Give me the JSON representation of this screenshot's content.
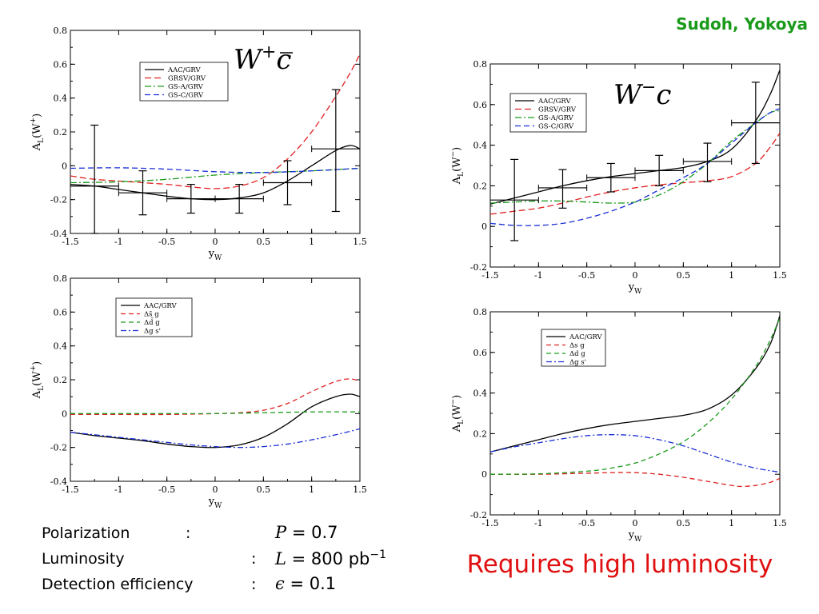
{
  "authors": "Sudoh, Yokoya",
  "conclusion": "Requires high luminosity",
  "params": [
    {
      "name": "Polarization",
      "colon": ":",
      "sym": "P",
      "rhs": "0.7",
      "unit": ""
    },
    {
      "name": "Luminosity",
      "colon": ":",
      "sym": "L",
      "rhs": "800",
      "unit": "pb",
      "sup": "−1"
    },
    {
      "name": "Detection efficiency",
      "colon": ":",
      "sym": "ϵ",
      "rhs": "0.1",
      "unit": ""
    }
  ],
  "colors": {
    "black": "#000000",
    "red": "#e02020",
    "green": "#1a9a1a",
    "blue": "#1a2fd6",
    "authors": "#1a9a1a",
    "conclusion": "#e01010"
  },
  "chart_data": [
    {
      "type": "line",
      "panel": "top-left",
      "title": "W+c̄",
      "ylabel": "A_L(W^+)",
      "xlabel": "y_W",
      "xlim": [
        -1.5,
        1.5
      ],
      "ylim": [
        -0.4,
        0.8
      ],
      "xticks": [
        "-1.5",
        "-1",
        "-0.5",
        "0",
        "0.5",
        "1",
        "1.5"
      ],
      "yticks": [
        "-0.4",
        "-0.2",
        "0",
        "0.2",
        "0.4",
        "0.6",
        "0.8"
      ],
      "legend_position": "upper-left",
      "series": [
        {
          "name": "AAC/GRV",
          "color": "#000000",
          "dash": "solid",
          "x": [
            -1.5,
            -1.25,
            -1,
            -0.75,
            -0.5,
            -0.25,
            0,
            0.25,
            0.5,
            0.75,
            1,
            1.25,
            1.4,
            1.5
          ],
          "y": [
            -0.11,
            -0.12,
            -0.14,
            -0.16,
            -0.18,
            -0.195,
            -0.2,
            -0.19,
            -0.16,
            -0.09,
            0.0,
            0.09,
            0.12,
            0.1
          ]
        },
        {
          "name": "GRSV/GRV",
          "color": "#e02020",
          "dash": "8,4",
          "x": [
            -1.5,
            -1.25,
            -1,
            -0.75,
            -0.5,
            -0.25,
            0,
            0.25,
            0.5,
            0.75,
            1,
            1.25,
            1.4,
            1.5
          ],
          "y": [
            -0.06,
            -0.08,
            -0.09,
            -0.1,
            -0.11,
            -0.125,
            -0.135,
            -0.12,
            -0.07,
            0.04,
            0.2,
            0.41,
            0.55,
            0.66
          ]
        },
        {
          "name": "GS-A/GRV",
          "color": "#1a9a1a",
          "dash": "8,3,2,3",
          "x": [
            -1.5,
            -1,
            -0.5,
            0,
            0.5,
            1,
            1.5
          ],
          "y": [
            -0.1,
            -0.095,
            -0.08,
            -0.055,
            -0.04,
            -0.03,
            -0.015
          ]
        },
        {
          "name": "GS-C/GRV",
          "color": "#1a2fd6",
          "dash": "7,4",
          "x": [
            -1.5,
            -1,
            -0.5,
            0,
            0.5,
            1,
            1.5
          ],
          "y": [
            -0.015,
            -0.012,
            -0.02,
            -0.035,
            -0.04,
            -0.03,
            -0.015
          ]
        }
      ],
      "error_bars": [
        {
          "x": -1.25,
          "y": -0.12,
          "xerr": 0.25,
          "ylo": -0.4,
          "yhi": 0.24
        },
        {
          "x": -0.75,
          "y": -0.16,
          "xerr": 0.25,
          "ylo": -0.29,
          "yhi": -0.03
        },
        {
          "x": -0.25,
          "y": -0.195,
          "xerr": 0.25,
          "ylo": -0.28,
          "yhi": -0.11
        },
        {
          "x": 0.25,
          "y": -0.195,
          "xerr": 0.25,
          "ylo": -0.28,
          "yhi": -0.11
        },
        {
          "x": 0.75,
          "y": -0.1,
          "xerr": 0.25,
          "ylo": -0.23,
          "yhi": 0.03
        },
        {
          "x": 1.25,
          "y": 0.1,
          "xerr": 0.25,
          "ylo": -0.27,
          "yhi": 0.45
        }
      ]
    },
    {
      "type": "line",
      "panel": "bottom-left",
      "ylabel": "A_L(W^+)",
      "xlabel": "y_W",
      "xlim": [
        -1.5,
        1.5
      ],
      "ylim": [
        -0.4,
        0.8
      ],
      "xticks": [
        "-1.5",
        "-1",
        "-0.5",
        "0",
        "0.5",
        "1",
        "1.5"
      ],
      "yticks": [
        "-0.4",
        "-0.2",
        "0",
        "0.2",
        "0.4",
        "0.6",
        "0.8"
      ],
      "legend_position": "upper-left",
      "series": [
        {
          "name": "AAC/GRV",
          "color": "#000000",
          "dash": "solid",
          "x": [
            -1.5,
            -1.25,
            -1,
            -0.75,
            -0.5,
            -0.25,
            0,
            0.25,
            0.5,
            0.75,
            1,
            1.25,
            1.4,
            1.5
          ],
          "y": [
            -0.11,
            -0.13,
            -0.145,
            -0.16,
            -0.18,
            -0.195,
            -0.2,
            -0.185,
            -0.14,
            -0.06,
            0.04,
            0.1,
            0.115,
            0.1
          ]
        },
        {
          "name": "Δs̄ g",
          "color": "#e02020",
          "dash": "6,4",
          "x": [
            -1.5,
            -1,
            -0.5,
            0,
            0.25,
            0.5,
            0.75,
            1,
            1.25,
            1.4,
            1.5
          ],
          "y": [
            -0.005,
            -0.005,
            -0.005,
            0.0,
            0.005,
            0.02,
            0.06,
            0.13,
            0.19,
            0.205,
            0.19
          ]
        },
        {
          "name": "Δd̄ g",
          "color": "#1a9a1a",
          "dash": "6,4",
          "x": [
            -1.5,
            -1,
            -0.5,
            0,
            0.5,
            1,
            1.5
          ],
          "y": [
            0.0,
            0.0,
            0.0,
            0.0,
            0.005,
            0.01,
            0.01
          ]
        },
        {
          "name": "Δg s'",
          "color": "#1a2fd6",
          "dash": "7,3,2,3",
          "x": [
            -1.5,
            -1.25,
            -1,
            -0.75,
            -0.5,
            -0.25,
            0,
            0.25,
            0.5,
            0.75,
            1,
            1.25,
            1.5
          ],
          "y": [
            -0.11,
            -0.125,
            -0.14,
            -0.155,
            -0.17,
            -0.185,
            -0.195,
            -0.2,
            -0.195,
            -0.18,
            -0.155,
            -0.125,
            -0.09
          ]
        }
      ]
    },
    {
      "type": "line",
      "panel": "top-right",
      "title": "W−c",
      "ylabel": "A_L(W^-)",
      "xlabel": "y_W",
      "xlim": [
        -1.5,
        1.5
      ],
      "ylim": [
        -0.2,
        0.8
      ],
      "xticks": [
        "-1.5",
        "-1",
        "-0.5",
        "0",
        "0.5",
        "1",
        "1.5"
      ],
      "yticks": [
        "-0.2",
        "0",
        "0.2",
        "0.4",
        "0.6",
        "0.8"
      ],
      "legend_position": "upper-left",
      "series": [
        {
          "name": "AAC/GRV",
          "color": "#000000",
          "dash": "solid",
          "x": [
            -1.5,
            -1.25,
            -1,
            -0.75,
            -0.5,
            -0.25,
            0,
            0.25,
            0.5,
            0.75,
            1,
            1.25,
            1.4,
            1.5
          ],
          "y": [
            0.11,
            0.14,
            0.17,
            0.2,
            0.225,
            0.245,
            0.26,
            0.275,
            0.29,
            0.32,
            0.38,
            0.52,
            0.65,
            0.77
          ]
        },
        {
          "name": "GRSV/GRV",
          "color": "#e02020",
          "dash": "8,4",
          "x": [
            -1.5,
            -1.25,
            -1,
            -0.75,
            -0.5,
            -0.25,
            0,
            0.25,
            0.5,
            0.75,
            1,
            1.25,
            1.4,
            1.5
          ],
          "y": [
            0.06,
            0.075,
            0.09,
            0.115,
            0.145,
            0.17,
            0.19,
            0.205,
            0.215,
            0.225,
            0.245,
            0.31,
            0.39,
            0.46
          ]
        },
        {
          "name": "GS-A/GRV",
          "color": "#1a9a1a",
          "dash": "8,3,2,3",
          "x": [
            -1.5,
            -1.25,
            -1,
            -0.75,
            -0.5,
            -0.25,
            0,
            0.25,
            0.5,
            0.75,
            1,
            1.25,
            1.4,
            1.5
          ],
          "y": [
            0.115,
            0.12,
            0.125,
            0.125,
            0.12,
            0.115,
            0.12,
            0.155,
            0.22,
            0.31,
            0.42,
            0.51,
            0.56,
            0.57
          ]
        },
        {
          "name": "GS-C/GRV",
          "color": "#1a2fd6",
          "dash": "7,4",
          "x": [
            -1.5,
            -1.25,
            -1,
            -0.75,
            -0.5,
            -0.25,
            0,
            0.25,
            0.5,
            0.75,
            1,
            1.25,
            1.4,
            1.5
          ],
          "y": [
            0.015,
            0.005,
            0.005,
            0.015,
            0.04,
            0.075,
            0.12,
            0.18,
            0.24,
            0.31,
            0.41,
            0.51,
            0.56,
            0.58
          ]
        }
      ],
      "error_bars": [
        {
          "x": -1.25,
          "y": 0.13,
          "xerr": 0.25,
          "ylo": -0.07,
          "yhi": 0.33
        },
        {
          "x": -0.75,
          "y": 0.19,
          "xerr": 0.25,
          "ylo": 0.09,
          "yhi": 0.28
        },
        {
          "x": -0.25,
          "y": 0.24,
          "xerr": 0.25,
          "ylo": 0.17,
          "yhi": 0.31
        },
        {
          "x": 0.25,
          "y": 0.275,
          "xerr": 0.25,
          "ylo": 0.2,
          "yhi": 0.35
        },
        {
          "x": 0.75,
          "y": 0.32,
          "xerr": 0.25,
          "ylo": 0.22,
          "yhi": 0.41
        },
        {
          "x": 1.25,
          "y": 0.51,
          "xerr": 0.25,
          "ylo": 0.31,
          "yhi": 0.71
        }
      ]
    },
    {
      "type": "line",
      "panel": "bottom-right",
      "ylabel": "A_L(W^-)",
      "xlabel": "y_W",
      "xlim": [
        -1.5,
        1.5
      ],
      "ylim": [
        -0.2,
        0.8
      ],
      "xticks": [
        "-1.5",
        "-1",
        "-0.5",
        "0",
        "0.5",
        "1",
        "1.5"
      ],
      "yticks": [
        "-0.2",
        "0",
        "0.2",
        "0.4",
        "0.6",
        "0.8"
      ],
      "legend_position": "upper-left",
      "series": [
        {
          "name": "AAC/GRV",
          "color": "#000000",
          "dash": "solid",
          "x": [
            -1.5,
            -1.25,
            -1,
            -0.75,
            -0.5,
            -0.25,
            0,
            0.25,
            0.5,
            0.75,
            1,
            1.25,
            1.4,
            1.5
          ],
          "y": [
            0.11,
            0.14,
            0.17,
            0.2,
            0.225,
            0.245,
            0.26,
            0.275,
            0.29,
            0.32,
            0.39,
            0.52,
            0.64,
            0.78
          ]
        },
        {
          "name": "Δs g",
          "color": "#e02020",
          "dash": "6,4",
          "x": [
            -1.5,
            -1,
            -0.5,
            -0.25,
            0,
            0.25,
            0.5,
            0.75,
            1,
            1.1,
            1.25,
            1.4,
            1.5
          ],
          "y": [
            0.0,
            0.0,
            0.005,
            0.008,
            0.008,
            0.0,
            -0.015,
            -0.035,
            -0.055,
            -0.06,
            -0.055,
            -0.04,
            -0.02
          ]
        },
        {
          "name": "Δd g",
          "color": "#1a9a1a",
          "dash": "6,4",
          "x": [
            -1.5,
            -1,
            -0.5,
            -0.25,
            0,
            0.25,
            0.5,
            0.75,
            1,
            1.25,
            1.4,
            1.5
          ],
          "y": [
            0.0,
            0.002,
            0.015,
            0.03,
            0.055,
            0.1,
            0.16,
            0.25,
            0.37,
            0.53,
            0.66,
            0.77
          ]
        },
        {
          "name": "Δg s'",
          "color": "#1a2fd6",
          "dash": "7,3,2,3",
          "x": [
            -1.5,
            -1.25,
            -1,
            -0.75,
            -0.5,
            -0.25,
            0,
            0.25,
            0.5,
            0.75,
            1,
            1.25,
            1.5
          ],
          "y": [
            0.11,
            0.135,
            0.155,
            0.175,
            0.19,
            0.195,
            0.19,
            0.17,
            0.14,
            0.1,
            0.06,
            0.03,
            0.01
          ]
        }
      ]
    }
  ]
}
